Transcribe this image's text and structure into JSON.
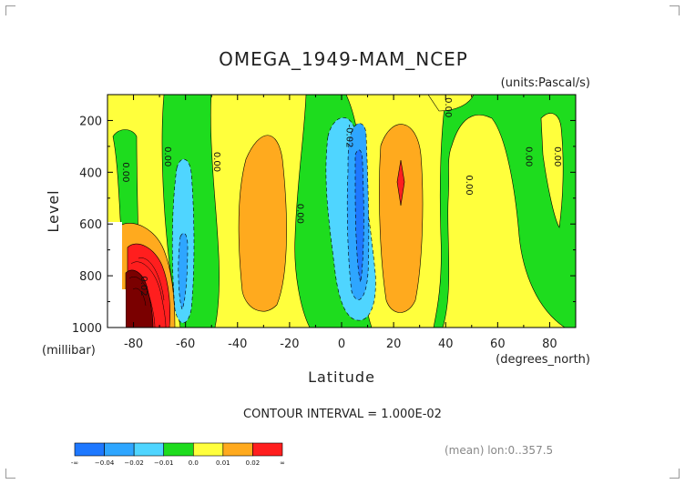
{
  "chart_data": {
    "type": "heatmap",
    "title": "OMEGA_1949-MAM_NCEP",
    "units": "(units:Pascal/s)",
    "xlabel": "Latitude",
    "ylabel": "Level",
    "x_unit": "(degrees_north)",
    "y_unit": "(millibar)",
    "xlim": [
      -90,
      90
    ],
    "ylim": [
      1000,
      100
    ],
    "x_ticks": [
      -80,
      -60,
      -40,
      -20,
      0,
      20,
      40,
      60,
      80
    ],
    "y_ticks": [
      200,
      400,
      600,
      800,
      1000
    ],
    "x_tick_labels": [
      "-80",
      "-60",
      "-40",
      "-20",
      "0",
      "20",
      "40",
      "60",
      "80"
    ],
    "y_tick_labels": [
      "200",
      "400",
      "600",
      "800",
      "1000"
    ],
    "contour_interval_text": "CONTOUR INTERVAL = 1.000E-02",
    "footer_note": "(mean) lon:0..357.5",
    "colorbar": {
      "colors": [
        "#1e78ff",
        "#2ea6ff",
        "#4fd5ff",
        "#1edc1e",
        "#ffff3c",
        "#ffaa1e",
        "#ff1e1e"
      ],
      "labels": [
        "-∞",
        "−0.04",
        "−0.02",
        "−0.01",
        "0.0",
        "0.01",
        "0.02",
        "∞"
      ]
    },
    "contour_labels": [
      {
        "text": "0.00",
        "lat": -84,
        "lev": 400
      },
      {
        "text": "0.00",
        "lat": -68,
        "lev": 340
      },
      {
        "text": "0.00",
        "lat": -49,
        "lev": 360
      },
      {
        "text": "0.00",
        "lat": -17,
        "lev": 560
      },
      {
        "text": "-0.02",
        "lat": 2,
        "lev": 260
      },
      {
        "text": "0.00",
        "lat": 40,
        "lev": 150
      },
      {
        "text": "0.00",
        "lat": 48,
        "lev": 450
      },
      {
        "text": "0.00",
        "lat": 71,
        "lev": 340
      },
      {
        "text": "0.00",
        "lat": 82,
        "lev": 340
      },
      {
        "text": "0.02",
        "lat": -77,
        "lev": 840
      }
    ],
    "regions": [
      {
        "level": "0.0",
        "color": "#1edc1e",
        "lat_range": [
          -90,
          90
        ],
        "lev_range": [
          100,
          1000
        ]
      },
      {
        "level": "0.01",
        "color": "#ffff3c",
        "center": [
          -82,
          450
        ]
      },
      {
        "level": "0.01",
        "color": "#ffff3c",
        "center": [
          -47,
          550
        ]
      },
      {
        "level": "0.01",
        "color": "#ffff3c",
        "center": [
          12,
          500
        ]
      },
      {
        "level": "0.01",
        "color": "#ffff3c",
        "center": [
          50,
          650
        ]
      },
      {
        "level": "0.02",
        "color": "#ffaa1e",
        "center": [
          -25,
          600
        ]
      },
      {
        "level": "0.02",
        "color": "#ffaa1e",
        "center": [
          23,
          550
        ]
      },
      {
        "level": "0.02",
        "color": "#ffaa1e",
        "center": [
          -76,
          850
        ]
      },
      {
        "level": "∞",
        "color": "#ff1e1e",
        "center": [
          -74,
          860
        ]
      },
      {
        "level": "∞",
        "color": "#ff1e1e",
        "center": [
          22,
          420
        ]
      },
      {
        "level": "-0.01",
        "color": "#4fd5ff",
        "center": [
          -63,
          660
        ]
      },
      {
        "level": "-0.01",
        "color": "#4fd5ff",
        "center": [
          2,
          600
        ]
      },
      {
        "level": "-0.02",
        "color": "#2ea6ff",
        "center": [
          -64,
          750
        ]
      },
      {
        "level": "-0.02",
        "color": "#2ea6ff",
        "center": [
          5,
          550
        ]
      },
      {
        "level": "-0.04",
        "color": "#1e78ff",
        "center": [
          5,
          600
        ]
      }
    ]
  }
}
